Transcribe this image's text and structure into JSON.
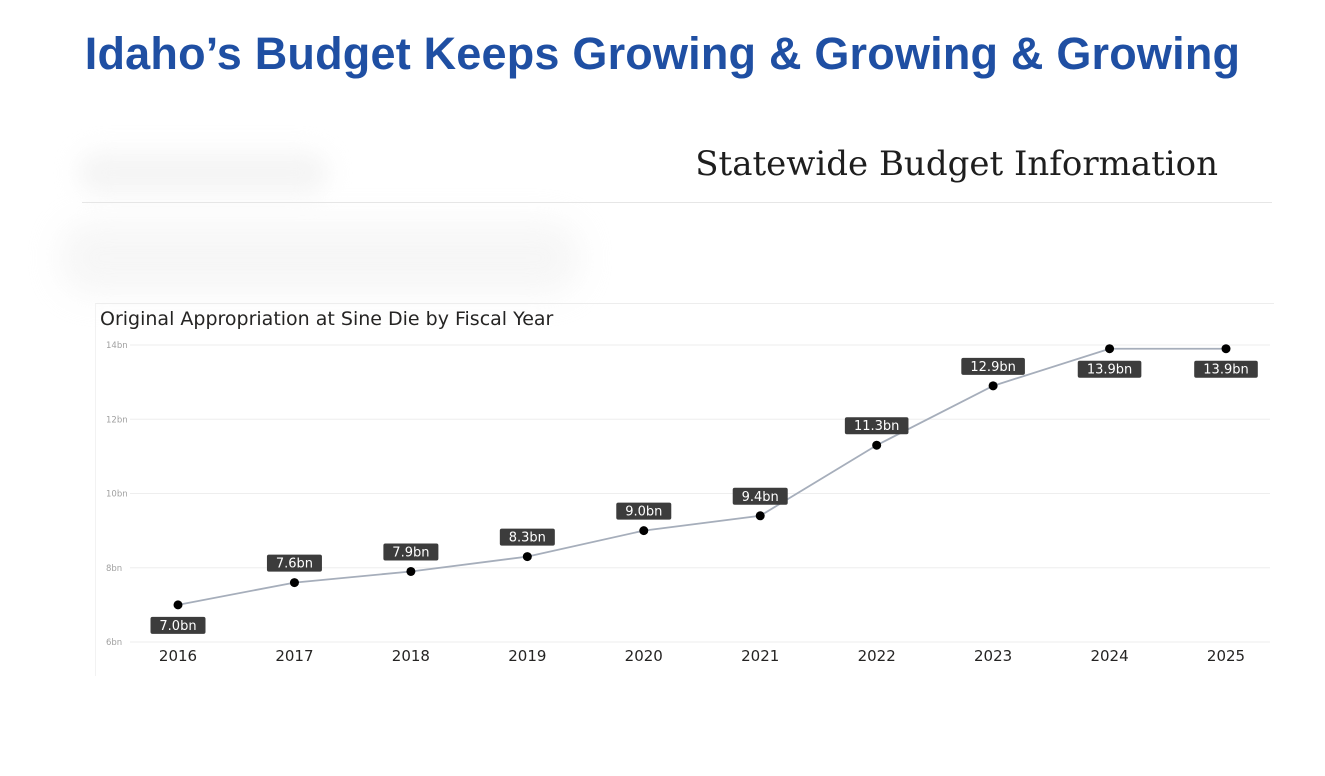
{
  "headline": "Idaho’s Budget Keeps Growing & Growing & Growing",
  "panel_title": "Statewide Budget Information",
  "colors": {
    "headline": "#1f4fa3",
    "line": "#a6aebb",
    "marker": "#000000",
    "label_bg": "#3c3c3c",
    "label_text": "#ffffff",
    "grid": "#eeeeee"
  },
  "chart_data": {
    "type": "line",
    "title": "Original Appropriation at Sine Die by Fiscal Year",
    "xlabel": "",
    "ylabel": "",
    "categories": [
      "2016",
      "2017",
      "2018",
      "2019",
      "2020",
      "2021",
      "2022",
      "2023",
      "2024",
      "2025"
    ],
    "values": [
      7.0,
      7.6,
      7.9,
      8.3,
      9.0,
      9.4,
      11.3,
      12.9,
      13.9,
      13.9
    ],
    "data_labels": [
      "7.0bn",
      "7.6bn",
      "7.9bn",
      "8.3bn",
      "9.0bn",
      "9.4bn",
      "11.3bn",
      "12.9bn",
      "13.9bn",
      "13.9bn"
    ],
    "label_position": [
      "below",
      "above",
      "above",
      "above",
      "above",
      "above",
      "above",
      "above",
      "below",
      "below"
    ],
    "ylim": [
      6,
      14
    ],
    "yticks": [
      6,
      8,
      10,
      12,
      14
    ],
    "ytick_labels": [
      "6bn",
      "8bn",
      "10bn",
      "12bn",
      "14bn"
    ],
    "grid": true,
    "legend": "none"
  }
}
